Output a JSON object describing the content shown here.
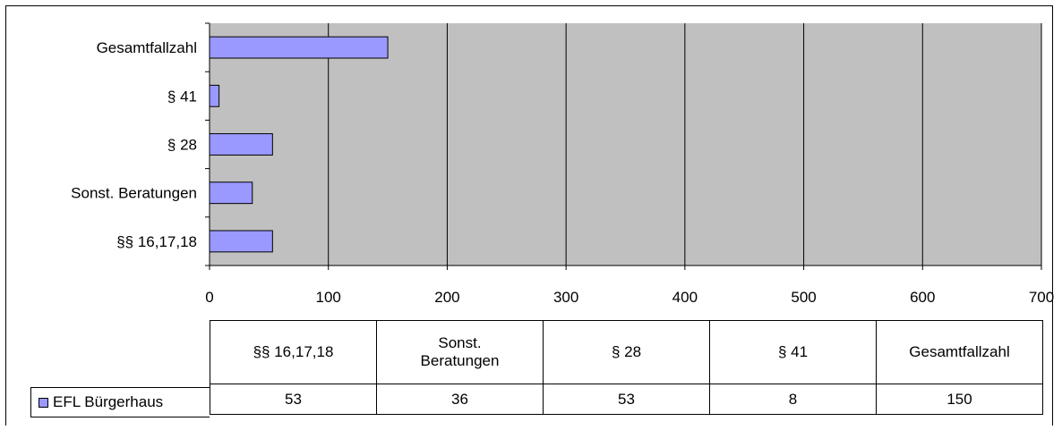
{
  "chart_data": {
    "type": "bar",
    "orientation": "horizontal",
    "categories": [
      "§§ 16,17,18",
      "Sonst. Beratungen",
      "§ 28",
      "§ 41",
      "Gesamtfallzahl"
    ],
    "series": [
      {
        "name": "EFL Bürgerhaus",
        "values": [
          53,
          36,
          53,
          8,
          150
        ]
      }
    ],
    "xlim": [
      0,
      700
    ],
    "x_ticks": [
      0,
      100,
      200,
      300,
      400,
      500,
      600,
      700
    ],
    "grid": true,
    "plot_background": "#c0c0c0",
    "bar_color": "#9999ff",
    "data_table": true,
    "table_header": [
      "§§ 16,17,18",
      "Sonst.\nBeratungen",
      "§ 28",
      "§ 41",
      "Gesamtfallzahl"
    ]
  }
}
